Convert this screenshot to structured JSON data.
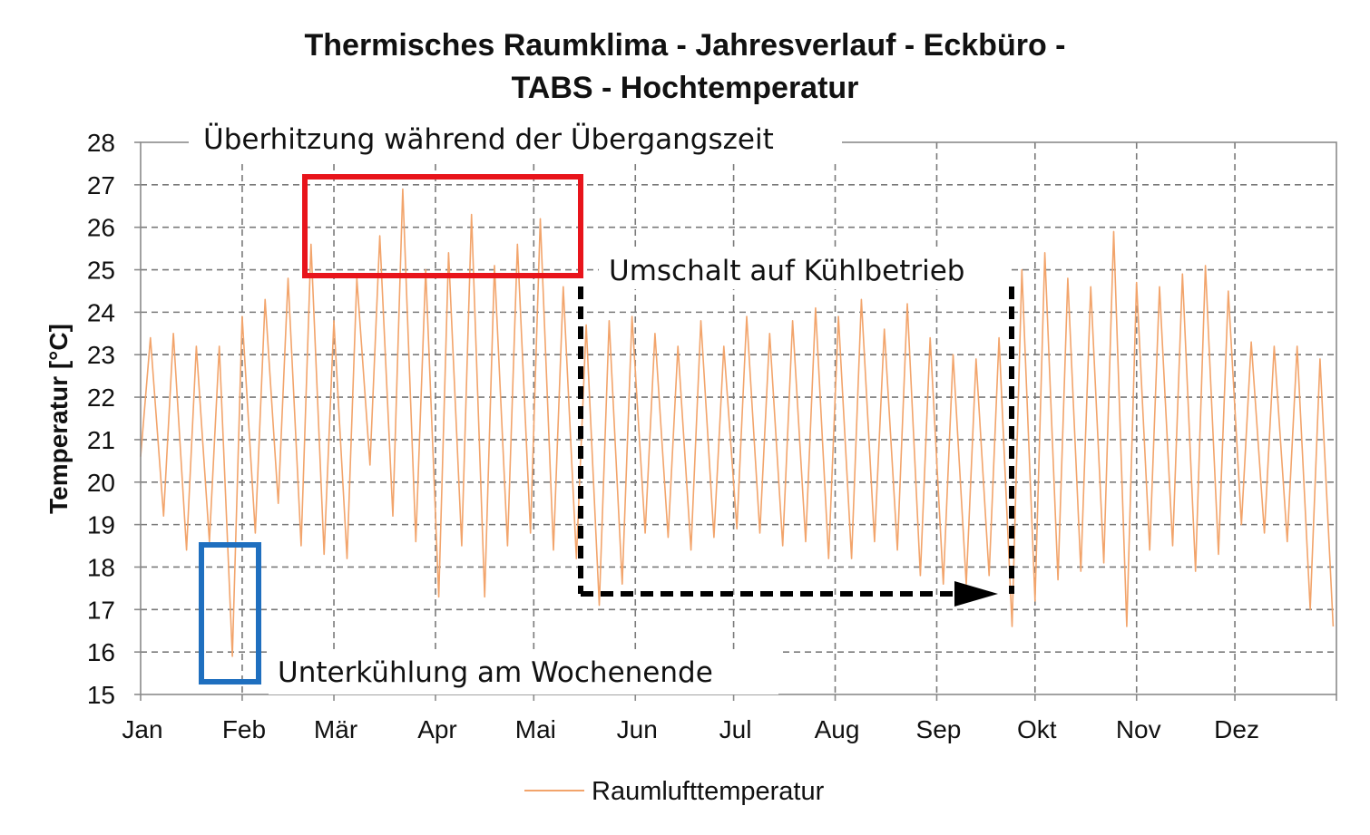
{
  "chart_data": {
    "type": "line",
    "title_line1": "Thermisches Raumklima - Jahresverlauf - Eckbüro -",
    "title_line2": "TABS - Hochtemperatur",
    "ylabel": "Temperatur [°C]",
    "xlabel": "",
    "ylim": [
      15,
      28
    ],
    "y_ticks": [
      15,
      16,
      17,
      18,
      19,
      20,
      21,
      22,
      23,
      24,
      25,
      26,
      27,
      28
    ],
    "x_ticks": [
      "Jan",
      "Feb",
      "Mär",
      "Apr",
      "Mai",
      "Jun",
      "Jul",
      "Aug",
      "Sep",
      "Okt",
      "Nov",
      "Dez"
    ],
    "grid": true,
    "legend_position": "bottom-center",
    "series": [
      {
        "name": "Raumlufttemperatur",
        "color": "#f2a46b",
        "x_unit": "day of year (day index, 0 = 1 Jan)",
        "x": [
          0,
          3,
          7,
          10,
          14,
          17,
          21,
          24,
          28,
          31,
          35,
          38,
          42,
          45,
          49,
          52,
          56,
          59,
          63,
          66,
          70,
          73,
          77,
          80,
          84,
          87,
          91,
          94,
          98,
          101,
          105,
          108,
          112,
          115,
          119,
          122,
          126,
          129,
          133,
          136,
          140,
          143,
          147,
          150,
          154,
          157,
          161,
          164,
          168,
          171,
          175,
          178,
          182,
          185,
          189,
          192,
          196,
          199,
          203,
          206,
          210,
          213,
          217,
          220,
          224,
          227,
          231,
          234,
          238,
          241,
          245,
          248,
          252,
          255,
          259,
          262,
          266,
          269,
          273,
          276,
          280,
          283,
          287,
          290,
          294,
          297,
          301,
          304,
          308,
          311,
          315,
          318,
          322,
          325,
          329,
          332,
          336,
          339,
          343,
          346,
          350,
          353,
          357,
          360,
          364
        ],
        "y": [
          20.6,
          23.4,
          19.2,
          23.5,
          18.4,
          23.2,
          18.6,
          23.2,
          15.9,
          23.9,
          18.8,
          24.3,
          19.5,
          24.8,
          18.5,
          25.6,
          18.3,
          23.8,
          18.2,
          24.8,
          20.4,
          25.8,
          19.2,
          26.9,
          18.6,
          25.0,
          17.3,
          25.4,
          18.5,
          26.3,
          17.3,
          25.1,
          18.5,
          25.6,
          18.8,
          26.2,
          18.4,
          24.6,
          18.2,
          23.7,
          17.1,
          23.8,
          17.6,
          23.9,
          18.8,
          23.5,
          18.7,
          23.2,
          18.4,
          23.8,
          18.7,
          23.2,
          18.9,
          23.9,
          18.8,
          23.5,
          18.5,
          23.8,
          18.6,
          24.1,
          18.2,
          23.9,
          18.2,
          24.3,
          18.6,
          23.6,
          18.4,
          24.2,
          17.8,
          23.4,
          17.6,
          23.0,
          17.6,
          22.9,
          17.8,
          23.4,
          16.6,
          25.0,
          17.2,
          25.4,
          17.7,
          24.8,
          17.9,
          24.6,
          18.1,
          25.9,
          16.6,
          24.7,
          18.4,
          24.6,
          18.5,
          24.9,
          17.9,
          25.1,
          18.3,
          24.5,
          19.0,
          23.3,
          18.8,
          23.2,
          18.6,
          23.2,
          17.0,
          22.9,
          16.6
        ]
      }
    ],
    "annotations": [
      {
        "text": "Überhitzung während der Übergangszeit",
        "color": "#111111"
      },
      {
        "text": "Umschalt auf Kühlbetrieb",
        "color": "#111111"
      },
      {
        "text": "Unterkühlung am Wochenende",
        "color": "#111111"
      }
    ],
    "highlight_colors": {
      "overheating": "#e8141b",
      "undercooling": "#1f6fbf",
      "cooling_switch": "#000000"
    }
  }
}
